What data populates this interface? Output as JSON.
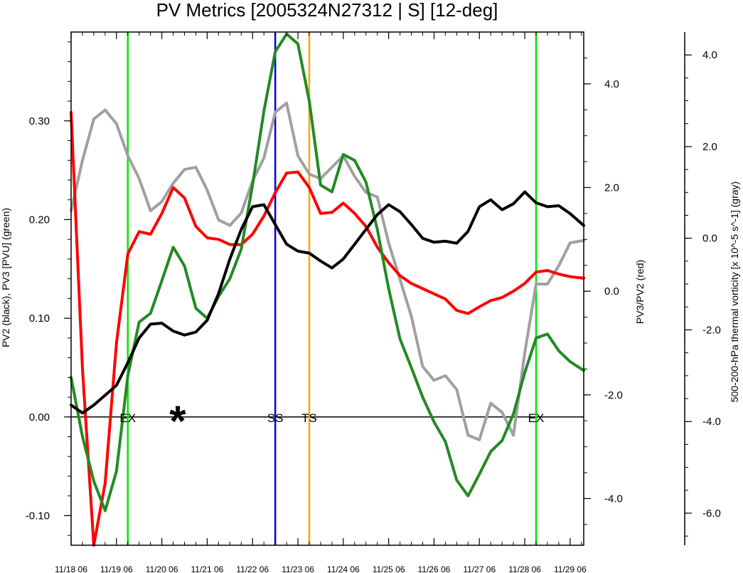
{
  "chart_data": {
    "type": "line",
    "title": "PV Metrics [2005324N27312 | S] [12-deg]",
    "x_tick_labels": [
      "11/18 06",
      "11/19 06",
      "11/20 06",
      "11/21 06",
      "11/22 06",
      "11/23 06",
      "11/24 06",
      "11/25 06",
      "11/26 06",
      "11/27 06",
      "11/28 06",
      "11/29 06"
    ],
    "xlim": [
      0,
      11.3
    ],
    "left_axis": {
      "label": "PV2 (black), PV3 [PVU] (green)",
      "ylim": [
        -0.13,
        0.39
      ],
      "ticks": [
        -0.1,
        0.0,
        0.1,
        0.2,
        0.3
      ],
      "tick_labels": [
        "-0.10",
        "0.00",
        "0.10",
        "0.20",
        "0.30"
      ]
    },
    "mid_axis": {
      "label": "PV3/PV2 (red)",
      "ylim": [
        -4.9,
        5.0
      ],
      "ticks": [
        -4.0,
        -2.0,
        0.0,
        2.0,
        4.0
      ],
      "tick_labels": [
        "-4.0",
        "-2.0",
        "0.0",
        "2.0",
        "4.0"
      ]
    },
    "right_axis": {
      "label": "500-200-hPa thermal vorticity [x 10^-5 s^-1] (gray)",
      "ylim": [
        -6.7,
        4.5
      ],
      "ticks": [
        -6.0,
        -4.0,
        -2.0,
        0.0,
        2.0,
        4.0
      ],
      "tick_labels": [
        "-6.0",
        "-4.0",
        "-2.0",
        "0.0",
        "2.0",
        "4.0"
      ]
    },
    "series": [
      {
        "axis": "left",
        "color": "#000000",
        "x": [
          0,
          0.25,
          0.5,
          0.75,
          1,
          1.25,
          1.5,
          1.75,
          2,
          2.25,
          2.5,
          2.75,
          3,
          3.25,
          3.5,
          3.75,
          4,
          4.25,
          4.5,
          4.75,
          5,
          5.25,
          5.5,
          5.75,
          6,
          6.25,
          6.5,
          6.75,
          7,
          7.25,
          7.5,
          7.75,
          8,
          8.25,
          8.5,
          8.75,
          9,
          9.25,
          9.5,
          9.75,
          10,
          10.25,
          10.5,
          10.75,
          11,
          11.3
        ],
        "values": [
          0.012,
          0.004,
          0.012,
          0.022,
          0.032,
          0.055,
          0.08,
          0.094,
          0.095,
          0.087,
          0.083,
          0.086,
          0.098,
          0.125,
          0.16,
          0.19,
          0.213,
          0.215,
          0.195,
          0.175,
          0.168,
          0.166,
          0.158,
          0.151,
          0.16,
          0.175,
          0.19,
          0.205,
          0.215,
          0.208,
          0.195,
          0.181,
          0.177,
          0.178,
          0.176,
          0.188,
          0.213,
          0.22,
          0.21,
          0.216,
          0.228,
          0.217,
          0.213,
          0.214,
          0.206,
          0.194
        ]
      },
      {
        "axis": "left",
        "color": "#228b22",
        "x": [
          0,
          0.25,
          0.5,
          0.75,
          1,
          1.25,
          1.5,
          1.75,
          2,
          2.25,
          2.5,
          2.75,
          3,
          3.25,
          3.5,
          3.75,
          4,
          4.25,
          4.5,
          4.75,
          5,
          5.25,
          5.5,
          5.75,
          6,
          6.25,
          6.5,
          6.75,
          7,
          7.25,
          7.5,
          7.75,
          8,
          8.25,
          8.5,
          8.75,
          9,
          9.25,
          9.5,
          9.75,
          10,
          10.25,
          10.5,
          10.75,
          11,
          11.3
        ],
        "values": [
          0.04,
          -0.02,
          -0.065,
          -0.095,
          -0.055,
          0.042,
          0.096,
          0.105,
          0.138,
          0.172,
          0.153,
          0.11,
          0.1,
          0.122,
          0.14,
          0.17,
          0.235,
          0.31,
          0.37,
          0.388,
          0.378,
          0.32,
          0.235,
          0.228,
          0.266,
          0.26,
          0.238,
          0.19,
          0.13,
          0.079,
          0.05,
          0.02,
          -0.005,
          -0.025,
          -0.064,
          -0.08,
          -0.058,
          -0.035,
          -0.024,
          0.003,
          0.045,
          0.08,
          0.084,
          0.067,
          0.056,
          0.047
        ]
      },
      {
        "axis": "mid",
        "color": "#ff0000",
        "x": [
          0,
          0.25,
          0.5,
          0.75,
          1,
          1.25,
          1.5,
          1.75,
          2,
          2.25,
          2.5,
          2.75,
          3,
          3.25,
          3.5,
          3.75,
          4,
          4.25,
          4.5,
          4.75,
          5,
          5.25,
          5.5,
          5.75,
          6,
          6.25,
          6.5,
          6.75,
          7,
          7.25,
          7.5,
          7.75,
          8,
          8.25,
          8.5,
          8.75,
          9,
          9.25,
          9.5,
          9.75,
          10,
          10.25,
          10.5,
          10.75,
          11,
          11.3
        ],
        "values": [
          3.45,
          -1.5,
          -4.9,
          -3.7,
          -1.0,
          0.72,
          1.15,
          1.1,
          1.5,
          2.0,
          1.8,
          1.25,
          1.03,
          1.0,
          0.9,
          0.9,
          1.1,
          1.45,
          1.9,
          2.28,
          2.3,
          2.0,
          1.5,
          1.52,
          1.7,
          1.5,
          1.25,
          0.85,
          0.55,
          0.3,
          0.15,
          0.05,
          -0.05,
          -0.15,
          -0.37,
          -0.43,
          -0.3,
          -0.18,
          -0.12,
          0.0,
          0.15,
          0.37,
          0.4,
          0.33,
          0.28,
          0.25
        ]
      },
      {
        "axis": "right",
        "color": "#a0a0a0",
        "x": [
          0,
          0.25,
          0.5,
          0.75,
          1,
          1.25,
          1.5,
          1.75,
          2,
          2.25,
          2.5,
          2.75,
          3,
          3.25,
          3.5,
          3.75,
          4,
          4.25,
          4.5,
          4.75,
          5,
          5.25,
          5.5,
          5.75,
          6,
          6.25,
          6.5,
          6.75,
          7,
          7.25,
          7.5,
          7.75,
          8,
          8.25,
          8.5,
          8.75,
          9,
          9.25,
          9.5,
          9.75,
          10,
          10.25,
          10.5,
          10.75,
          11,
          11.3
        ],
        "values": [
          0.6,
          1.7,
          2.6,
          2.8,
          2.5,
          1.8,
          1.3,
          0.6,
          0.8,
          1.2,
          1.5,
          1.55,
          1.05,
          0.4,
          0.28,
          0.55,
          1.25,
          1.75,
          2.75,
          2.95,
          1.8,
          1.4,
          1.3,
          1.55,
          1.8,
          1.35,
          1.0,
          0.9,
          -0.1,
          -0.9,
          -1.7,
          -2.8,
          -3.1,
          -3.0,
          -3.3,
          -4.3,
          -4.4,
          -3.6,
          -3.8,
          -4.3,
          -2.5,
          -1.0,
          -1.0,
          -0.6,
          -0.1,
          -0.05
        ]
      }
    ],
    "vertical_lines": [
      {
        "x": 1.25,
        "color": "#00e600"
      },
      {
        "x": 4.5,
        "color": "#0000dd"
      },
      {
        "x": 5.25,
        "color": "#ffa500"
      },
      {
        "x": 10.25,
        "color": "#00e600"
      }
    ],
    "annotations": [
      {
        "x": 1.25,
        "text": "EX"
      },
      {
        "x": 4.5,
        "text": "SS"
      },
      {
        "x": 5.25,
        "text": "TS"
      },
      {
        "x": 10.25,
        "text": "EX"
      }
    ],
    "marker": {
      "x": 2.35,
      "y": 0.0,
      "symbol": "*"
    },
    "grid": false,
    "legend": "none"
  }
}
